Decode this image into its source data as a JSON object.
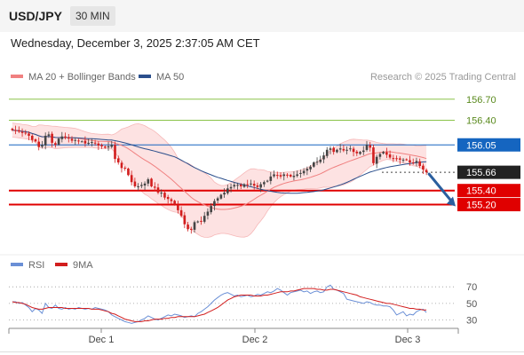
{
  "header": {
    "symbol": "USD/JPY",
    "timeframe": "30 MIN"
  },
  "datetime": "Wednesday, December 3, 2025 2:37:05 AM CET",
  "colors": {
    "bollinger": "#f08080",
    "bollinger_fill": "#fde2e2",
    "ma50": "#2b4f8c",
    "resistance_green": "#8bc34a",
    "pivot_blue": "#1565c0",
    "support_red": "#e00000",
    "candle_up": "#444444",
    "candle_down": "#d21e1e",
    "rsi": "#6a8fd6",
    "rsi_ma": "#d21e1e",
    "arrow": "#2b5f9e"
  },
  "chart_data": [
    {
      "type": "candlestick",
      "legend": [
        {
          "name": "MA 20 + Bollinger Bands",
          "color": "#f08080"
        },
        {
          "name": "MA 50",
          "color": "#2b4f8c"
        }
      ],
      "legend_placement": "top-left",
      "watermark": "Research © 2025 Trading Central",
      "x_ticks": [
        "Dec 1",
        "Dec 2",
        "Dec 3"
      ],
      "ylim": [
        154.55,
        156.95
      ],
      "levels": [
        {
          "value": 156.7,
          "label": "156.70",
          "kind": "resistance"
        },
        {
          "value": 156.4,
          "label": "156.40",
          "kind": "resistance"
        },
        {
          "value": 156.05,
          "label": "156.05",
          "kind": "pivot"
        },
        {
          "value": 155.66,
          "label": "155.66",
          "kind": "last"
        },
        {
          "value": 155.4,
          "label": "155.40",
          "kind": "support"
        },
        {
          "value": 155.2,
          "label": "155.20",
          "kind": "support"
        }
      ],
      "close": [
        156.26,
        156.25,
        156.24,
        156.22,
        156.22,
        156.18,
        156.12,
        156.1,
        156.02,
        156.05,
        156.18,
        156.2,
        156.08,
        156.05,
        156.14,
        156.17,
        156.15,
        156.14,
        156.11,
        156.12,
        156.1,
        156.1,
        156.07,
        156.08,
        156.09,
        156.07,
        156.04,
        156.03,
        156.01,
        156.03,
        156.05,
        155.85,
        155.8,
        155.72,
        155.72,
        155.62,
        155.52,
        155.46,
        155.46,
        155.48,
        155.5,
        155.56,
        155.46,
        155.44,
        155.37,
        155.37,
        155.3,
        155.28,
        155.25,
        155.2,
        155.12,
        155.04,
        154.92,
        154.85,
        154.85,
        154.95,
        154.96,
        154.96,
        155.04,
        155.1,
        155.18,
        155.25,
        155.29,
        155.34,
        155.37,
        155.43,
        155.45,
        155.48,
        155.48,
        155.46,
        155.49,
        155.48,
        155.5,
        155.47,
        155.45,
        155.49,
        155.52,
        155.54,
        155.6,
        155.63,
        155.62,
        155.6,
        155.63,
        155.62,
        155.6,
        155.61,
        155.63,
        155.65,
        155.68,
        155.71,
        155.74,
        155.8,
        155.81,
        155.84,
        155.9,
        155.98,
        156.0,
        155.95,
        155.98,
        156.0,
        155.97,
        155.98,
        156.0,
        155.95,
        155.93,
        155.95,
        155.97,
        156.05,
        156.01,
        155.79,
        155.88,
        155.92,
        155.95,
        155.91,
        155.87,
        155.86,
        155.85,
        155.84,
        155.84,
        155.84,
        155.8,
        155.79,
        155.82,
        155.75,
        155.7,
        155.66
      ]
    },
    {
      "type": "line",
      "legend": [
        {
          "name": "RSI",
          "color": "#6a8fd6"
        },
        {
          "name": "9MA",
          "color": "#d21e1e"
        }
      ],
      "legend_placement": "top-left",
      "y_ticks": [
        70,
        50,
        30
      ],
      "ylim": [
        22,
        82
      ],
      "x_ticks": [
        "Dec 1",
        "Dec 2",
        "Dec 3"
      ],
      "rsi": [
        52,
        52,
        50,
        51,
        48,
        45,
        40,
        44,
        42,
        38,
        50,
        45,
        44,
        48,
        44,
        43,
        45,
        43,
        44,
        43,
        45,
        44,
        43,
        44,
        43,
        45,
        44,
        43,
        42,
        40,
        36,
        34,
        32,
        30,
        28,
        27,
        26,
        27,
        28,
        30,
        32,
        35,
        33,
        31,
        30,
        32,
        34,
        36,
        35,
        37,
        36,
        35,
        33,
        34,
        35,
        34,
        38,
        40,
        43,
        46,
        50,
        54,
        57,
        60,
        62,
        63,
        61,
        59,
        60,
        58,
        59,
        60,
        58,
        59,
        61,
        60,
        62,
        64,
        63,
        65,
        68,
        66,
        63,
        60,
        63,
        64,
        65,
        66,
        64,
        65,
        62,
        64,
        65,
        63,
        64,
        70,
        72,
        67,
        66,
        64,
        62,
        55,
        54,
        53,
        52,
        51,
        50,
        52,
        51,
        49,
        48,
        48,
        47,
        47,
        46,
        42,
        36,
        38,
        40,
        35,
        37,
        36,
        40,
        42,
        43,
        39
      ],
      "rsi_ma": [
        52,
        51,
        51,
        50,
        49,
        47,
        45,
        44,
        43,
        43,
        44,
        45,
        45,
        45,
        45,
        45,
        44,
        44,
        44,
        44,
        44,
        44,
        44,
        44,
        43,
        43,
        43,
        42,
        41,
        40,
        38,
        37,
        35,
        33,
        31,
        30,
        29,
        28,
        28,
        28,
        29,
        29,
        30,
        31,
        31,
        31,
        32,
        32,
        33,
        33,
        34,
        34,
        34,
        34,
        34,
        34,
        35,
        36,
        37,
        39,
        41,
        43,
        45,
        48,
        51,
        54,
        56,
        58,
        59,
        60,
        60,
        60,
        60,
        59,
        59,
        59,
        60,
        60,
        61,
        62,
        63,
        64,
        64,
        64,
        65,
        65,
        66,
        67,
        68,
        68,
        68,
        68,
        67,
        67,
        66,
        66,
        67,
        67,
        66,
        65,
        64,
        63,
        62,
        61,
        60,
        58,
        57,
        56,
        55,
        54,
        53,
        52,
        51,
        50,
        50,
        49,
        48,
        47,
        46,
        45,
        44,
        44,
        43,
        43,
        42,
        42
      ]
    }
  ]
}
